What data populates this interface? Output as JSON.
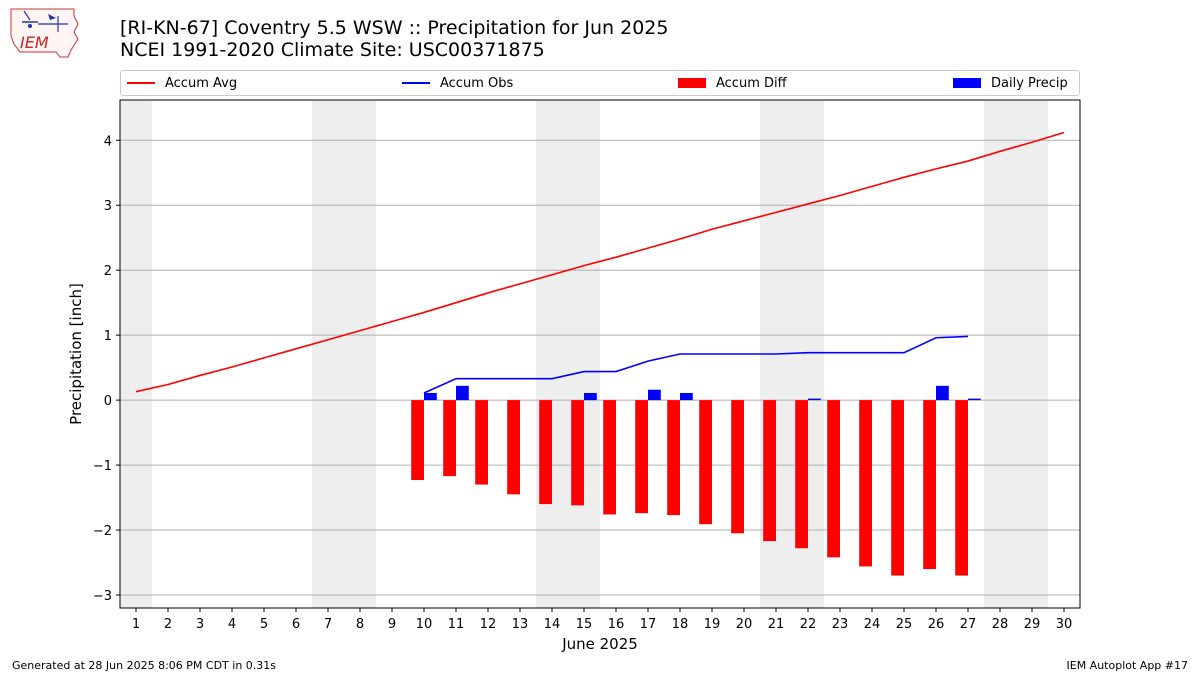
{
  "header": {
    "title_line1": "[RI-KN-67] Coventry 5.5 WSW :: Precipitation for Jun 2025",
    "title_line2": "NCEI 1991-2020 Climate Site: USC00371875",
    "logo_text": "IEM"
  },
  "footer": {
    "generated": "Generated at 28 Jun 2025 8:06 PM CDT in 0.31s",
    "app": "IEM Autoplot App #17"
  },
  "colors": {
    "avg": "#ff0000",
    "obs": "#0000ff",
    "diff": "#ff0000",
    "daily": "#0000ff",
    "weekend_shade": "#eeeeee",
    "grid": "#b0b0b0"
  },
  "chart_data": {
    "type": "bar",
    "title": "[RI-KN-67] Coventry 5.5 WSW :: Precipitation for Jun 2025",
    "subtitle": "NCEI 1991-2020 Climate Site: USC00371875",
    "xlabel": "June 2025",
    "ylabel": "Precipitation [inch]",
    "xlim": [
      0.5,
      30.5
    ],
    "ylim": [
      -3.2,
      4.62
    ],
    "x_ticks": [
      1,
      2,
      3,
      4,
      5,
      6,
      7,
      8,
      9,
      10,
      11,
      12,
      13,
      14,
      15,
      16,
      17,
      18,
      19,
      20,
      21,
      22,
      23,
      24,
      25,
      26,
      27,
      28,
      29,
      30
    ],
    "y_ticks": [
      -3,
      -2,
      -1,
      0,
      1,
      2,
      3,
      4
    ],
    "y_tick_labels": [
      "−3",
      "−2",
      "−1",
      "0",
      "1",
      "2",
      "3",
      "4"
    ],
    "grid": "horizontal",
    "legend_position": "top",
    "shaded_days": [
      [
        0.5,
        1.5
      ],
      [
        6.5,
        8.5
      ],
      [
        13.5,
        15.5
      ],
      [
        20.5,
        22.5
      ],
      [
        27.5,
        29.5
      ]
    ],
    "series": [
      {
        "name": "Accum Avg",
        "kind": "line",
        "x": [
          1,
          2,
          3,
          4,
          5,
          6,
          7,
          8,
          9,
          10,
          11,
          12,
          13,
          14,
          15,
          16,
          17,
          18,
          19,
          20,
          21,
          22,
          23,
          24,
          25,
          26,
          27,
          28,
          29,
          30
        ],
        "values": [
          0.13,
          0.24,
          0.38,
          0.51,
          0.65,
          0.79,
          0.93,
          1.07,
          1.21,
          1.35,
          1.5,
          1.65,
          1.79,
          1.93,
          2.07,
          2.2,
          2.34,
          2.48,
          2.63,
          2.76,
          2.89,
          3.02,
          3.15,
          3.29,
          3.43,
          3.56,
          3.68,
          3.83,
          3.97,
          4.12
        ]
      },
      {
        "name": "Accum Obs",
        "kind": "line",
        "x": [
          10,
          11,
          12,
          13,
          14,
          15,
          16,
          17,
          18,
          19,
          20,
          21,
          22,
          23,
          24,
          25,
          26,
          27
        ],
        "values": [
          0.11,
          0.33,
          0.33,
          0.33,
          0.33,
          0.44,
          0.44,
          0.6,
          0.71,
          0.71,
          0.71,
          0.71,
          0.73,
          0.73,
          0.73,
          0.73,
          0.96,
          0.98
        ]
      },
      {
        "name": "Accum Diff",
        "kind": "bar",
        "x": [
          10,
          11,
          12,
          13,
          14,
          15,
          16,
          17,
          18,
          19,
          20,
          21,
          22,
          23,
          24,
          25,
          26,
          27
        ],
        "values": [
          -1.23,
          -1.17,
          -1.3,
          -1.45,
          -1.6,
          -1.62,
          -1.76,
          -1.74,
          -1.77,
          -1.91,
          -2.05,
          -2.17,
          -2.28,
          -2.42,
          -2.56,
          -2.7,
          -2.6,
          -2.7
        ]
      },
      {
        "name": "Daily Precip",
        "kind": "bar",
        "x": [
          10,
          11,
          15,
          17,
          18,
          22,
          26,
          27
        ],
        "values": [
          0.11,
          0.22,
          0.11,
          0.16,
          0.11,
          0.02,
          0.22,
          0.02
        ]
      }
    ]
  }
}
